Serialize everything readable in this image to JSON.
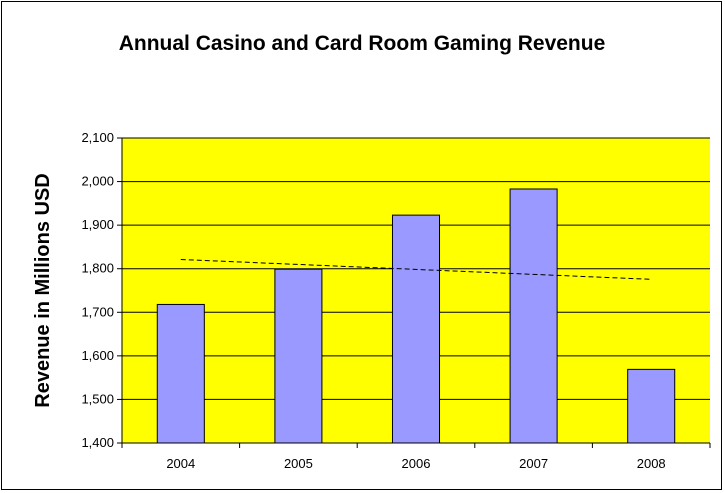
{
  "chart_data": {
    "type": "bar",
    "title": "Annual Casino and Card Room Gaming Revenue",
    "xlabel": "",
    "ylabel": "Revenue in Millions USD",
    "categories": [
      "2004",
      "2005",
      "2006",
      "2007",
      "2008"
    ],
    "values": [
      1718,
      1799,
      1923,
      1983,
      1569
    ],
    "ylim": [
      1400,
      2100
    ],
    "yticks": [
      1400,
      1500,
      1600,
      1700,
      1800,
      1900,
      2000,
      2100
    ],
    "ytick_labels": [
      "1,400",
      "1,500",
      "1,600",
      "1,700",
      "1,800",
      "1,900",
      "2,000",
      "2,100"
    ],
    "trendline": {
      "type": "linear",
      "style": "dashed",
      "color": "#000000"
    },
    "grid": true,
    "legend": "none",
    "colors": {
      "plot_background": "#ffff00",
      "bar_fill": "#9999ff",
      "bar_stroke": "#000000",
      "gridline": "#000000"
    }
  }
}
